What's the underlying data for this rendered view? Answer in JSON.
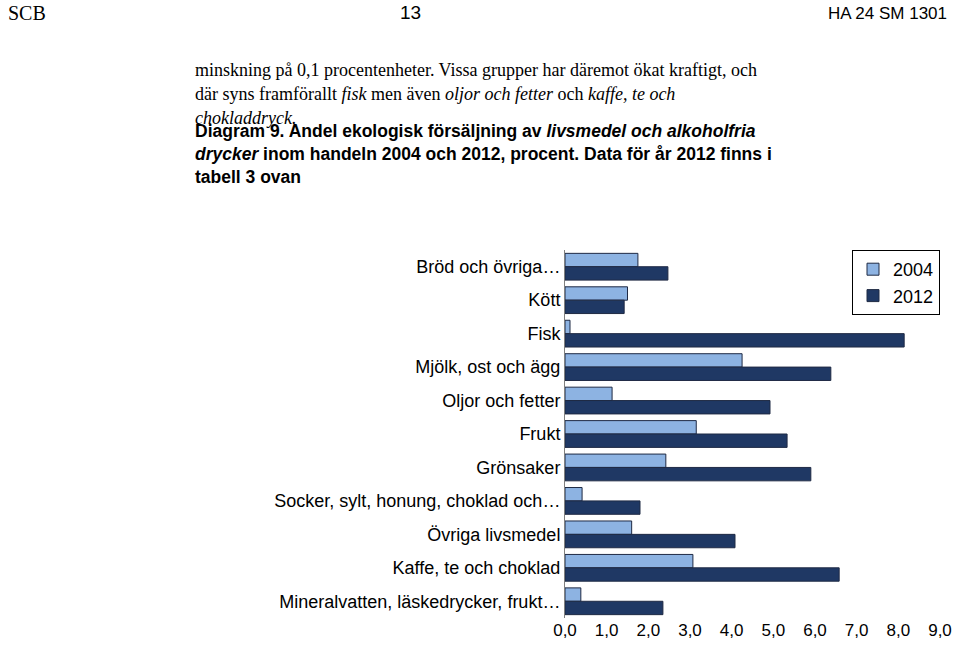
{
  "header": {
    "left": "SCB",
    "center": "13",
    "right": "HA 24 SM 1301"
  },
  "paragraph": [
    {
      "text": "minskning på 0,1 procentenheter. Vissa grupper har däremot ökat kraftigt, och där syns framförallt ",
      "italic": false
    },
    {
      "text": "fisk",
      "italic": true
    },
    {
      "text": " men även ",
      "italic": false
    },
    {
      "text": "oljor och fetter",
      "italic": true
    },
    {
      "text": " och ",
      "italic": false
    },
    {
      "text": "kaffe, te och chokladdryck.",
      "italic": true
    }
  ],
  "caption": [
    {
      "text": "Diagram 9. Andel ekologisk försäljning av ",
      "italic": false
    },
    {
      "text": "livsmedel och alkoholfria drycker",
      "italic": true
    },
    {
      "text": " inom handeln 2004 och 2012, procent. Data för år 2012 finns i tabell 3 ovan",
      "italic": false
    }
  ],
  "chart_data": {
    "type": "bar",
    "orientation": "horizontal",
    "categories": [
      "Bröd och övriga…",
      "Kött",
      "Fisk",
      "Mjölk, ost och ägg",
      "Oljor och fetter",
      "Frukt",
      "Grönsaker",
      "Socker, sylt, honung, choklad och…",
      "Övriga livsmedel",
      "Kaffe, te och choklad",
      "Mineralvatten, läskedrycker, frukt…"
    ],
    "series": [
      {
        "name": "2004",
        "color": "#8db3e2",
        "values": [
          1.75,
          1.5,
          0.12,
          4.25,
          1.13,
          3.15,
          2.42,
          0.41,
          1.6,
          3.07,
          0.38
        ]
      },
      {
        "name": "2012",
        "color": "#1f3864",
        "values": [
          2.47,
          1.42,
          8.14,
          6.38,
          4.92,
          5.33,
          5.9,
          1.8,
          4.08,
          6.58,
          2.35
        ]
      }
    ],
    "xlim": [
      0,
      9
    ],
    "xticks": [
      {
        "value": 0,
        "label": "0,0"
      },
      {
        "value": 1,
        "label": "1,0"
      },
      {
        "value": 2,
        "label": "2,0"
      },
      {
        "value": 3,
        "label": "3,0"
      },
      {
        "value": 4,
        "label": "4,0"
      },
      {
        "value": 5,
        "label": "5,0"
      },
      {
        "value": 6,
        "label": "6,0"
      },
      {
        "value": 7,
        "label": "7,0"
      },
      {
        "value": 8,
        "label": "8,0"
      },
      {
        "value": 9,
        "label": "9,0"
      }
    ],
    "legend": "upper right",
    "grid": false
  }
}
